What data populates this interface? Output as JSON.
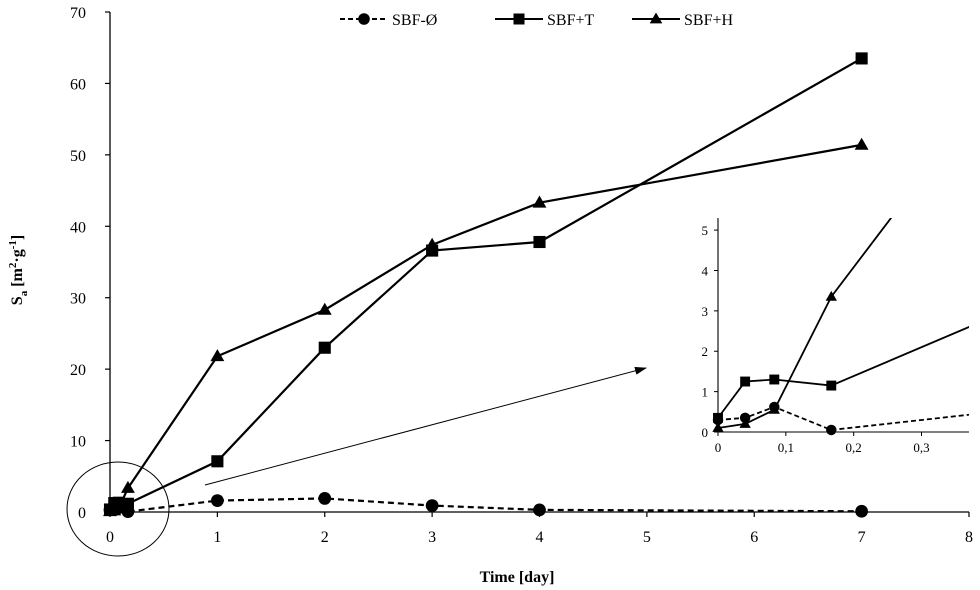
{
  "chart_data": [
    {
      "type": "line",
      "xlabel": "Time [day]",
      "ylabel_main": "S",
      "ylabel_sub": "a",
      "ylabel_unit_open": " [m",
      "ylabel_sup1": "2",
      "ylabel_mid": "·g",
      "ylabel_sup2": "-1",
      "ylabel_close": "]",
      "xlim": [
        0,
        8
      ],
      "ylim": [
        0,
        70
      ],
      "x_ticks": [
        "0",
        "1",
        "2",
        "3",
        "4",
        "5",
        "6",
        "7",
        "8"
      ],
      "y_ticks": [
        "0",
        "10",
        "20",
        "30",
        "40",
        "50",
        "60",
        "70"
      ],
      "legend_position": "top-center",
      "series": [
        {
          "name": "SBF-Ø",
          "style": "dashed",
          "marker": "circle",
          "x": [
            0,
            0.04,
            0.083,
            0.167,
            1,
            2,
            3,
            4,
            7
          ],
          "y": [
            0.3,
            0.35,
            0.62,
            0.05,
            1.6,
            1.9,
            0.9,
            0.3,
            0.1
          ]
        },
        {
          "name": "SBF+T",
          "style": "solid",
          "marker": "square",
          "x": [
            0,
            0.04,
            0.083,
            0.167,
            1,
            2,
            3,
            4,
            7
          ],
          "y": [
            0.35,
            1.25,
            1.3,
            1.15,
            7.1,
            23.0,
            36.6,
            37.8,
            63.5
          ]
        },
        {
          "name": "SBF+H",
          "style": "solid",
          "marker": "triangle",
          "x": [
            0,
            0.04,
            0.083,
            0.167,
            1,
            2,
            3,
            4,
            7
          ],
          "y": [
            0.1,
            0.2,
            0.55,
            3.35,
            21.8,
            28.3,
            37.4,
            43.3,
            51.4
          ]
        }
      ]
    },
    {
      "type": "line",
      "role": "inset",
      "xlim": [
        0,
        0.37
      ],
      "ylim": [
        0,
        5.3
      ],
      "x_ticks": [
        "0",
        "0,1",
        "0,2",
        "0,3"
      ],
      "y_ticks": [
        "0",
        "1",
        "2",
        "3",
        "4",
        "5"
      ]
    }
  ]
}
